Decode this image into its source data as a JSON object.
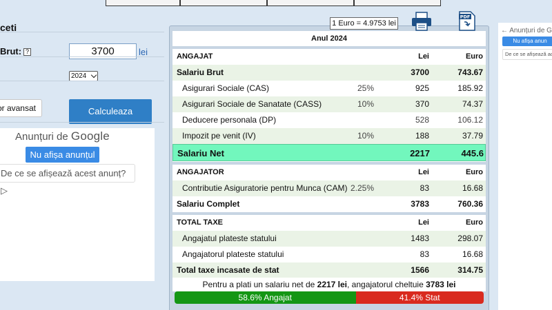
{
  "left": {
    "title": "ceti",
    "brut_label": "Brut:",
    "help_glyph": "?",
    "brut_value": "3700",
    "brut_unit": "lei",
    "year_value": "2024",
    "advanced_label": "or avansat",
    "calculate_label": "Calculeaza"
  },
  "ad_left": {
    "header_prefix": "Anunțuri de",
    "header_brand": "Google",
    "hide_label": "Nu afișa anunțul",
    "why_label": "De ce se afișează acest anunț? ▷"
  },
  "rate": "1 Euro = 4.9753 lei",
  "icons": {
    "print": "printer-icon",
    "pdf": "pdf-icon"
  },
  "table": {
    "year_title": "Anul 2024",
    "col_lei": "Lei",
    "col_euro": "Euro",
    "angajat": {
      "title": "ANGAJAT",
      "rows": [
        {
          "label": "Salariu Brut",
          "pct": "",
          "lei": "3700",
          "euro": "743.67"
        },
        {
          "label": "Asigurari Sociale (CAS)",
          "pct": "25%",
          "lei": "925",
          "euro": "185.92"
        },
        {
          "label": "Asigurari Sociale de Sanatate (CASS)",
          "pct": "10%",
          "lei": "370",
          "euro": "74.37"
        },
        {
          "label": "Deducere personala (DP)",
          "pct": "",
          "lei": "528",
          "euro": "106.12"
        },
        {
          "label": "Impozit pe venit (IV)",
          "pct": "10%",
          "lei": "188",
          "euro": "37.79"
        }
      ],
      "net": {
        "label": "Salariu Net",
        "lei": "2217",
        "euro": "445.6"
      }
    },
    "angajator": {
      "title": "ANGAJATOR",
      "rows": [
        {
          "label": "Contributie Asiguratorie pentru Munca (CAM)",
          "pct": "2.25%",
          "lei": "83",
          "euro": "16.68"
        },
        {
          "label": "Salariu Complet",
          "pct": "",
          "lei": "3783",
          "euro": "760.36"
        }
      ]
    },
    "taxe": {
      "title": "TOTAL TAXE",
      "rows": [
        {
          "label": "Angajatul plateste statului",
          "lei": "1483",
          "euro": "298.07"
        },
        {
          "label": "Angajatorul plateste statului",
          "lei": "83",
          "euro": "16.68"
        },
        {
          "label": "Total taxe incasate de stat",
          "lei": "1566",
          "euro": "314.75"
        }
      ]
    },
    "footer": {
      "prefix": "Pentru a plati un salariu net de ",
      "net": "2217 lei",
      "middle": ", angajatorul cheltuie ",
      "total": "3783 lei"
    },
    "split": {
      "angajat_label": "58.6% Angajat",
      "angajat_fraction": 0.586,
      "stat_label": "41.4% Stat",
      "colors": {
        "angajat": "#149614",
        "stat": "#d92a1e"
      }
    }
  },
  "ad_right": {
    "header": "Anunțuri de G",
    "hide_label": "Nu afișa anun",
    "why_label": "De ce se afișează ac"
  }
}
